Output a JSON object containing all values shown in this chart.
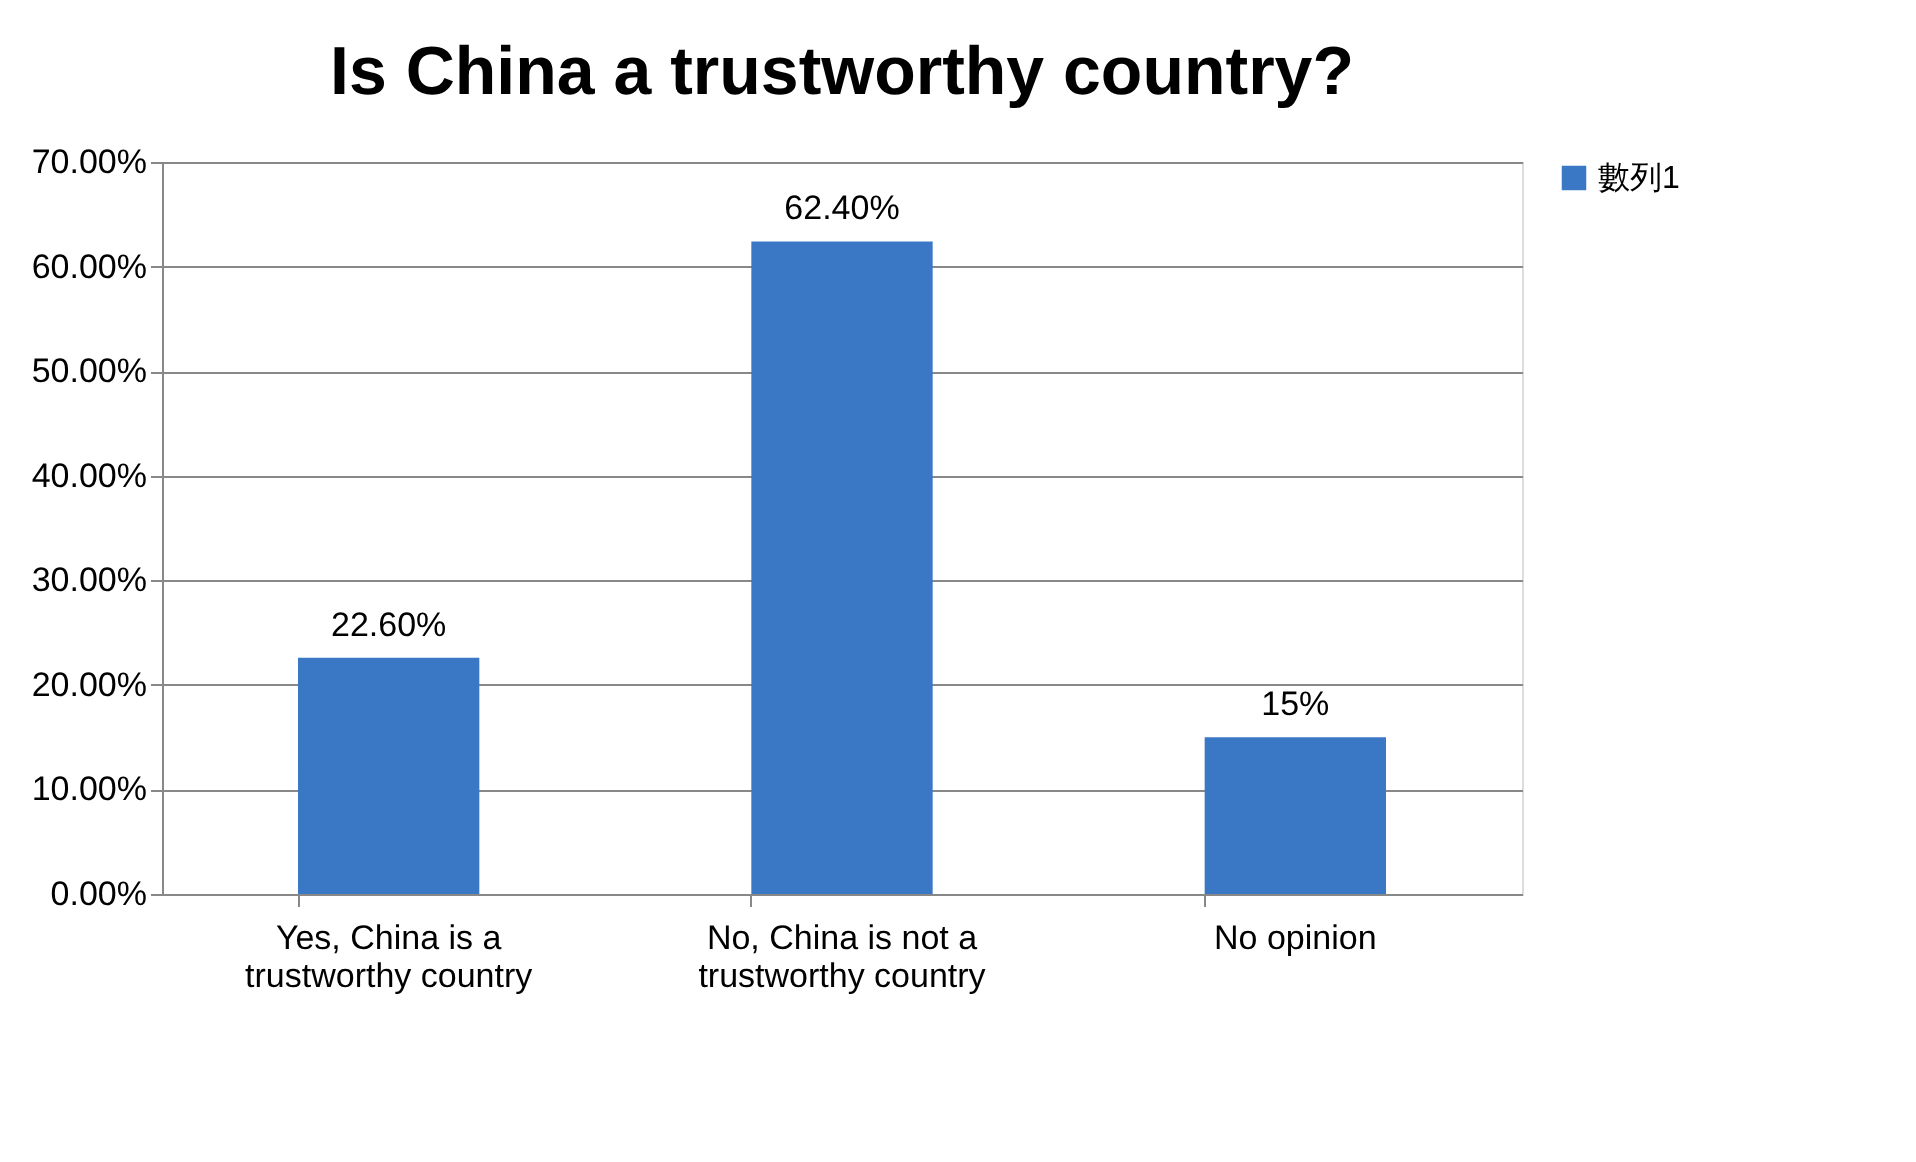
{
  "chart_data": {
    "type": "bar",
    "title": "Is China a trustworthy country?",
    "categories": [
      "Yes, China is a trustworthy country",
      "No, China is not a trustworthy country",
      "No opinion"
    ],
    "series": [
      {
        "name": "數列1",
        "color": "#3a78c6",
        "values": [
          22.6,
          62.4,
          15
        ],
        "value_labels": [
          "22.60%",
          "62.40%",
          "15%"
        ]
      }
    ],
    "ylim": [
      0,
      70
    ],
    "yticks": [
      {
        "value": 0,
        "label": "0.00%"
      },
      {
        "value": 10,
        "label": "10.00%"
      },
      {
        "value": 20,
        "label": "20.00%"
      },
      {
        "value": 30,
        "label": "30.00%"
      },
      {
        "value": 40,
        "label": "40.00%"
      },
      {
        "value": 50,
        "label": "50.00%"
      },
      {
        "value": 60,
        "label": "60.00%"
      },
      {
        "value": 70,
        "label": "70.00%"
      }
    ],
    "grid": "y",
    "legend": "right"
  }
}
